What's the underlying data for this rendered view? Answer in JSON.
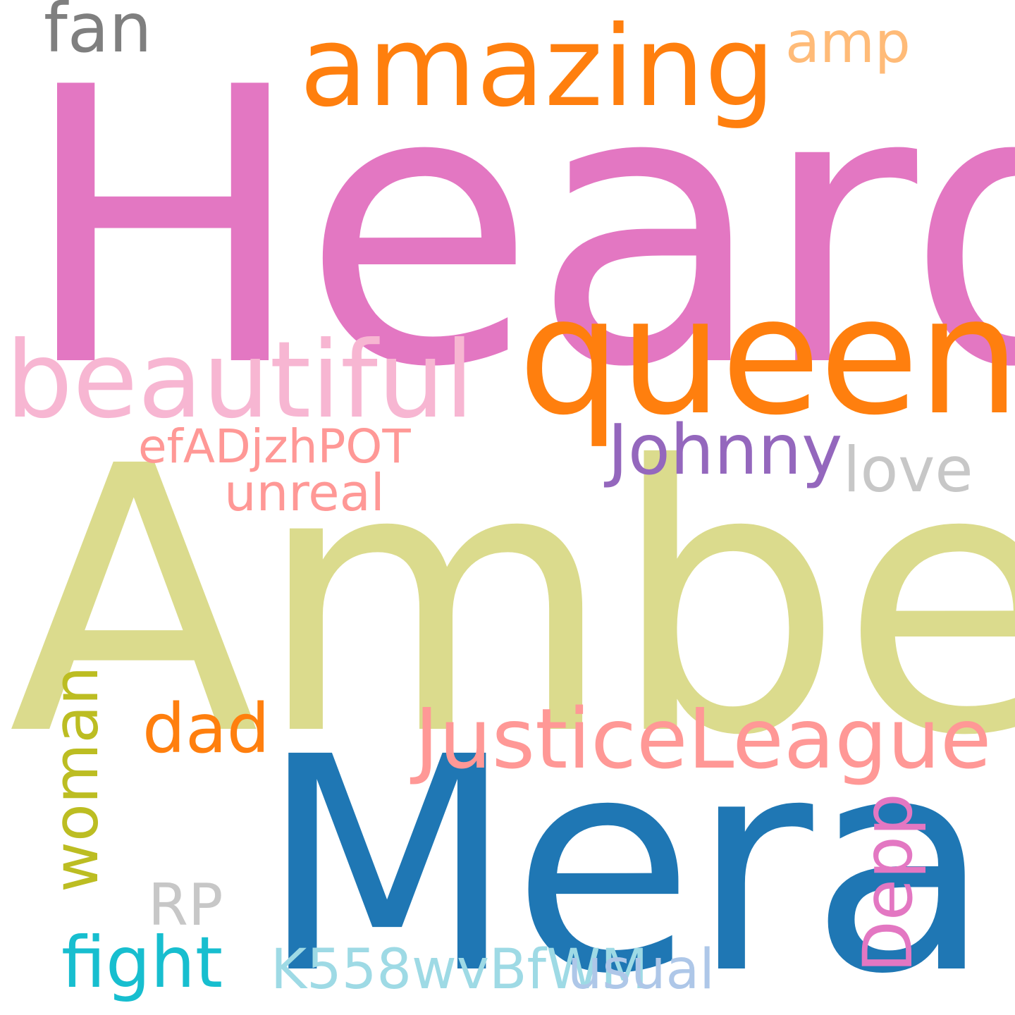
{
  "wordcloud": {
    "words": [
      {
        "text": "Heard",
        "color": "#e377c2"
      },
      {
        "text": "Amber",
        "color": "#dbdb8d"
      },
      {
        "text": "Mera",
        "color": "#1f77b4"
      },
      {
        "text": "queen",
        "color": "#ff7f0e"
      },
      {
        "text": "amazing",
        "color": "#ff7f0e"
      },
      {
        "text": "beautiful",
        "color": "#f7b6d2"
      },
      {
        "text": "JusticeLeague",
        "color": "#ff9896"
      },
      {
        "text": "Johnny",
        "color": "#9467bd"
      },
      {
        "text": "love",
        "color": "#c7c7c7"
      },
      {
        "text": "fan",
        "color": "#7f7f7f"
      },
      {
        "text": "amp",
        "color": "#ffbb78"
      },
      {
        "text": "dad",
        "color": "#ff7f0e"
      },
      {
        "text": "fight",
        "color": "#17becf"
      },
      {
        "text": "RP",
        "color": "#c7c7c7"
      },
      {
        "text": "efADjzhPOT",
        "color": "#ff9896"
      },
      {
        "text": "unreal",
        "color": "#ff9896"
      },
      {
        "text": "K558wvBfWM",
        "color": "#9edae5"
      },
      {
        "text": "usual",
        "color": "#aec7e8"
      },
      {
        "text": "woman",
        "color": "#bcbd22"
      },
      {
        "text": "Depp",
        "color": "#e377c2"
      }
    ]
  }
}
